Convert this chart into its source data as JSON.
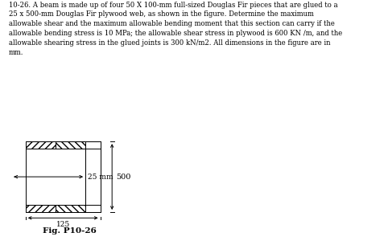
{
  "title_text": "10-26. A beam is made up of four 50 X 100-mm full-sized Douglas Fir pieces that are glued to a\n25 x 500-mm Douglas Fir plywood web, as shown in the figure. Determine the maximum\nallowable shear and the maximum allowable bending moment that this section can carry if the\nallowable bending stress is 10 MPa; the allowable shear stress in plywood is 600 KN /m, and the\nallowable shearing stress in the glued joints is 300 kN/m2. All dimensions in the figure are in\nmm.",
  "fig_label": "Fig. P10-26",
  "dim_25mm": "25 mm",
  "dim_500": "500",
  "dim_125": "125",
  "bg_color": "#ffffff",
  "text_fontsize": 6.15,
  "fig_label_fontsize": 7.5
}
